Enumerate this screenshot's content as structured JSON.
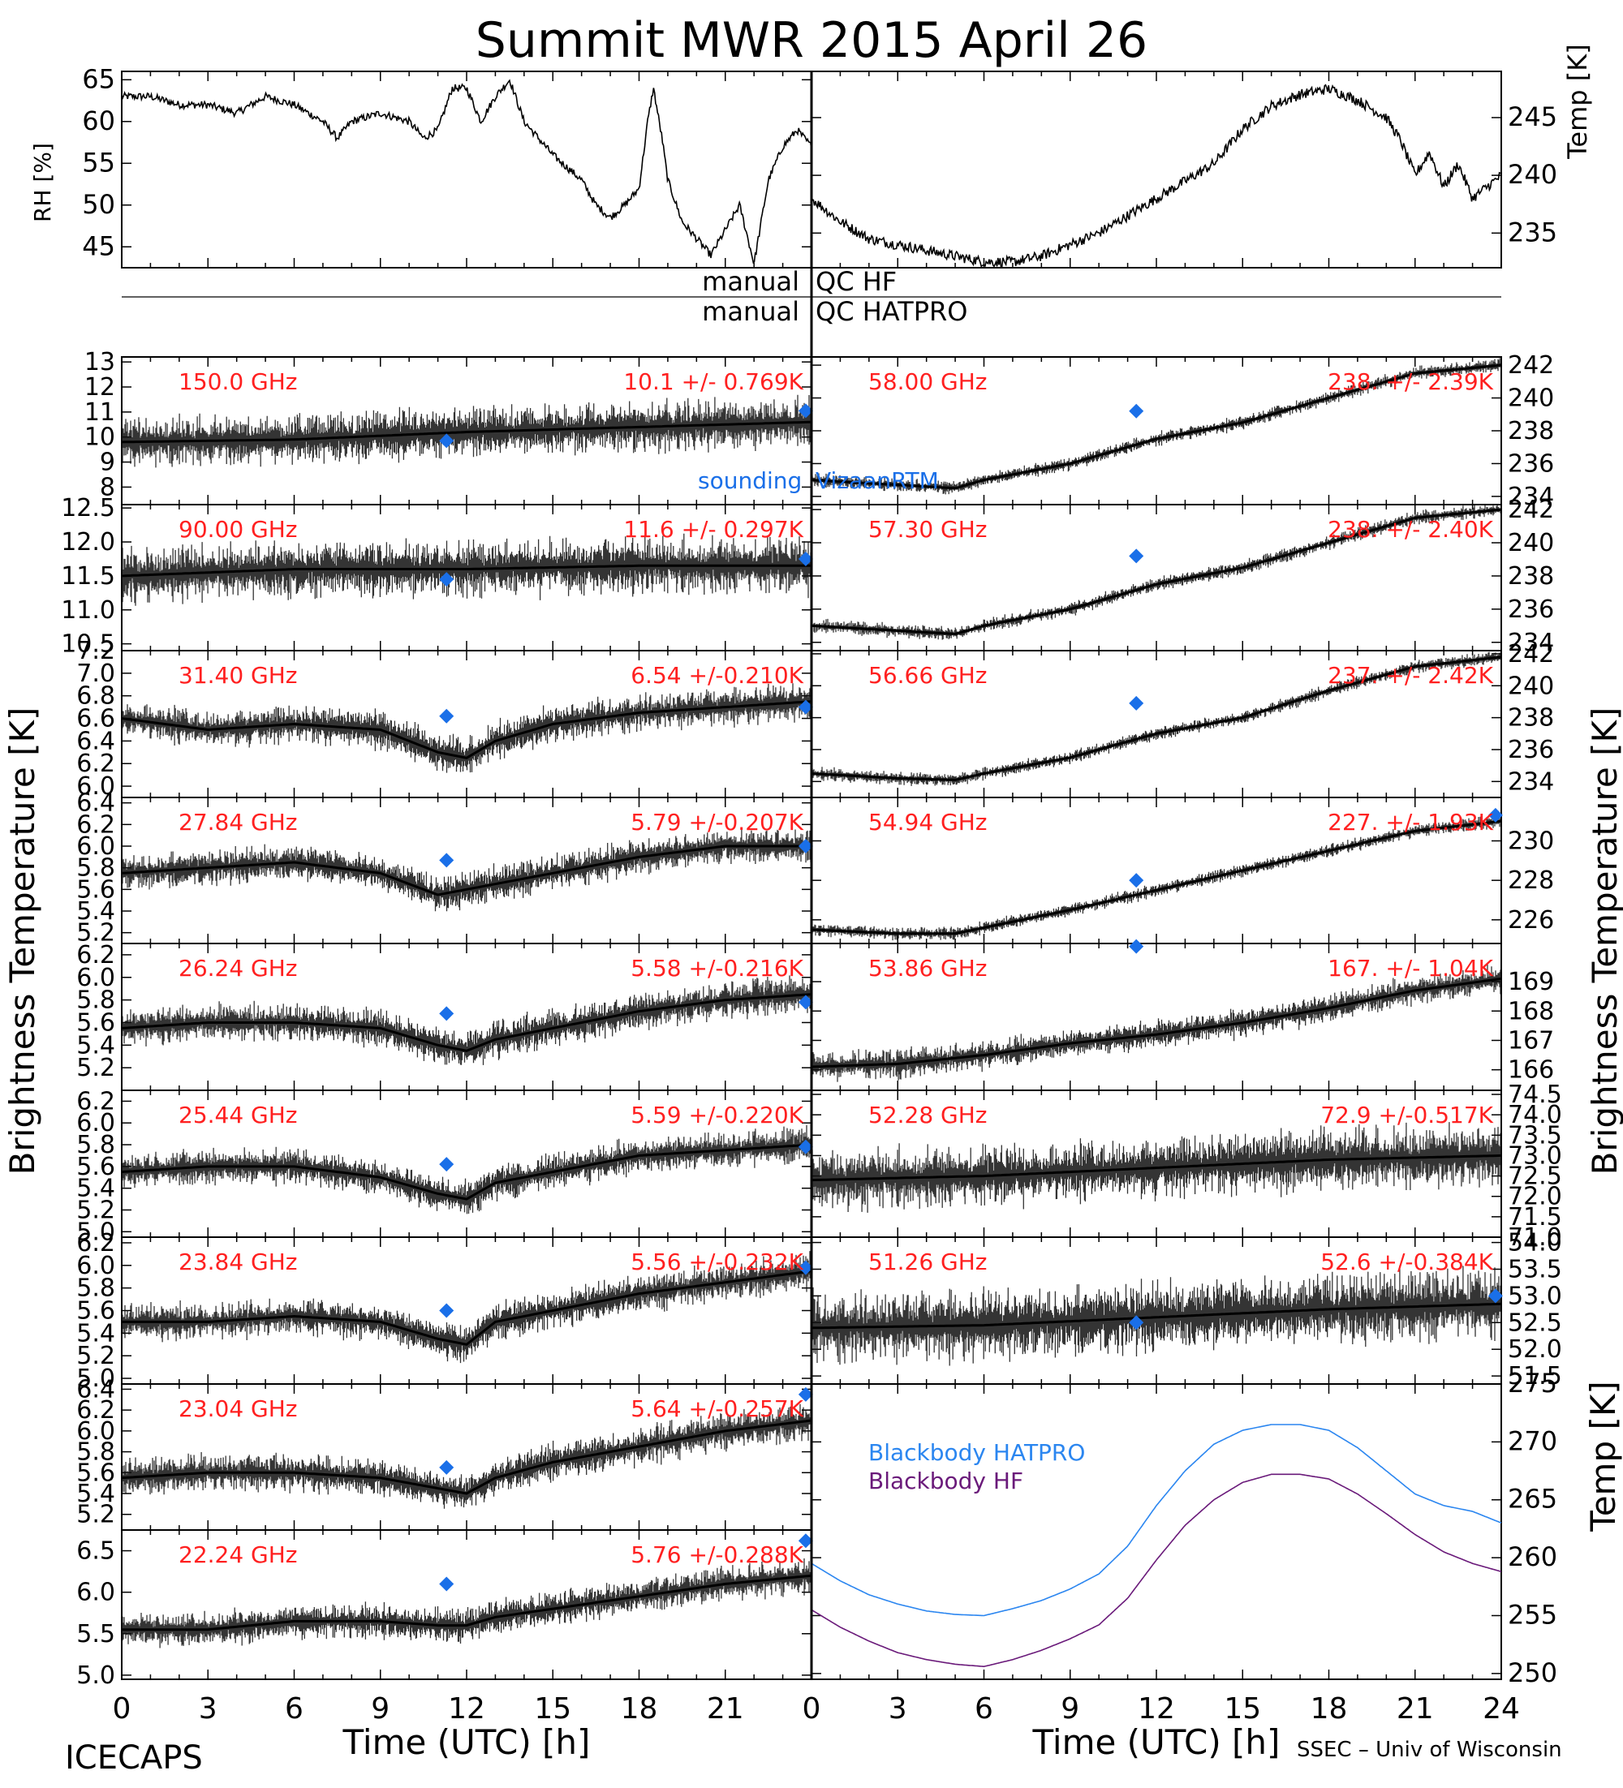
{
  "title": "Summit MWR 2015 April 26",
  "footer": {
    "left": "ICECAPS",
    "right": "SSEC – Univ of Wisconsin"
  },
  "colors": {
    "text": "#000000",
    "stats": "#ff2020",
    "marker": "#1a6fe8",
    "hatpro": "#2b86f0",
    "hf": "#6a1a7a"
  },
  "labels": {
    "rh_axis": "RH [%]",
    "temp_axis": "Temp [K]",
    "tb_axis": "Brightness Temperature [K]",
    "bb_axis": "Temp [K]",
    "qc_hf_left": "manual",
    "qc_hf_right": "QC HF",
    "qc_hat_left": "manual",
    "qc_hat_right": "QC HATPRO",
    "xlabel": "Time (UTC) [h]",
    "sounding": "sounding",
    "sounding_tail": "VizaanRTM",
    "bb_hatpro": "Blackbody HATPRO",
    "bb_hf": "Blackbody HF"
  },
  "chart_data": [
    {
      "id": "rh",
      "type": "line",
      "ylabel": "RH [%]",
      "ylim": [
        42.5,
        66
      ],
      "yticks": [
        45,
        50,
        55,
        60,
        65
      ],
      "xlim": [
        0,
        24
      ],
      "x": [
        0,
        1,
        2,
        3,
        4,
        5,
        6,
        7,
        7.5,
        8,
        9,
        10,
        10.5,
        11,
        11.5,
        12,
        12.5,
        13,
        13.5,
        14,
        15,
        16,
        16.5,
        17,
        17.5,
        18,
        18.3,
        18.5,
        18.8,
        19,
        19.5,
        20,
        20.5,
        21,
        21.5,
        22,
        22.5,
        23,
        23.5,
        24
      ],
      "y": [
        63,
        63,
        62,
        62,
        61,
        63,
        62,
        60,
        58,
        60,
        61,
        60,
        58,
        59,
        64,
        64,
        60,
        63,
        65,
        60,
        56,
        53,
        50,
        48.5,
        50,
        52,
        60,
        64,
        58,
        53,
        48,
        46,
        44,
        47,
        50,
        43,
        53,
        57,
        59,
        57
      ]
    },
    {
      "id": "temp",
      "type": "line",
      "ylabel": "Temp [K]",
      "ylim": [
        232,
        249
      ],
      "yticks": [
        235,
        240,
        245
      ],
      "xlim": [
        0,
        24
      ],
      "x": [
        0,
        1,
        2,
        3,
        4,
        5,
        6,
        7,
        8,
        9,
        10,
        11,
        12,
        13,
        14,
        15,
        16,
        17,
        18,
        19,
        20,
        20.5,
        21,
        21.5,
        22,
        22.5,
        23,
        23.5,
        24
      ],
      "y": [
        238,
        236,
        234.5,
        234,
        233.5,
        233,
        232.5,
        232.5,
        233,
        234,
        235,
        236.5,
        238,
        239.5,
        241,
        244,
        246,
        247,
        247.5,
        246.5,
        245,
        243,
        240,
        242,
        239,
        241,
        238,
        239,
        240
      ]
    },
    {
      "id": "tb150",
      "type": "scatter",
      "label": "150.0 GHz",
      "stats": "10.1 +/- 0.769K",
      "ylim": [
        7.3,
        13.2
      ],
      "yticks": [
        8,
        9,
        10,
        11,
        12,
        13
      ],
      "yticklabels": [
        "8",
        "9",
        "10",
        "11",
        "12",
        "13"
      ],
      "xlim": [
        0,
        24
      ],
      "trend_x": [
        0,
        6,
        12,
        18,
        24
      ],
      "trend_y": [
        9.8,
        9.9,
        10.2,
        10.4,
        10.6
      ],
      "noise": 1.2,
      "sounding": [
        [
          11.3,
          9.85
        ],
        [
          23.8,
          11.05
        ]
      ]
    },
    {
      "id": "tb90",
      "type": "scatter",
      "label": "90.00 GHz",
      "stats": "11.6 +/- 0.297K",
      "ylim": [
        10.4,
        12.55
      ],
      "yticks": [
        10.5,
        11.0,
        11.5,
        12.0,
        12.5
      ],
      "yticklabels": [
        "10.5",
        "11.0",
        "11.5",
        "12.0",
        "12.5"
      ],
      "xlim": [
        0,
        24
      ],
      "trend_x": [
        0,
        6,
        12,
        18,
        24
      ],
      "trend_y": [
        11.5,
        11.6,
        11.6,
        11.65,
        11.65
      ],
      "noise": 0.5,
      "sounding": [
        [
          11.3,
          11.45
        ],
        [
          23.8,
          11.75
        ]
      ]
    },
    {
      "id": "tb3140",
      "type": "scatter",
      "label": "31.40 GHz",
      "stats": "6.54 +/-0.210K",
      "ylim": [
        5.9,
        7.2
      ],
      "yticks": [
        6.0,
        6.2,
        6.4,
        6.6,
        6.8,
        7.0,
        7.2
      ],
      "yticklabels": [
        "6.0",
        "6.2",
        "6.4",
        "6.6",
        "6.8",
        "7.0",
        "7.2"
      ],
      "xlim": [
        0,
        24
      ],
      "trend_x": [
        0,
        3,
        6,
        9,
        11,
        12,
        13,
        15,
        18,
        21,
        24
      ],
      "trend_y": [
        6.6,
        6.5,
        6.55,
        6.5,
        6.3,
        6.25,
        6.4,
        6.55,
        6.65,
        6.7,
        6.75
      ],
      "noise": 0.2,
      "sounding": [
        [
          11.3,
          6.62
        ],
        [
          23.8,
          6.7
        ]
      ]
    },
    {
      "id": "tb2784",
      "type": "scatter",
      "label": "27.84 GHz",
      "stats": "5.79 +/-0.207K",
      "ylim": [
        5.1,
        6.45
      ],
      "yticks": [
        5.2,
        5.4,
        5.6,
        5.8,
        6.0,
        6.2,
        6.4
      ],
      "yticklabels": [
        "5.2",
        "5.4",
        "5.6",
        "5.8",
        "6.0",
        "6.2",
        "6.4"
      ],
      "xlim": [
        0,
        24
      ],
      "trend_x": [
        0,
        3,
        6,
        9,
        11,
        12,
        13,
        15,
        18,
        21,
        24
      ],
      "trend_y": [
        5.75,
        5.8,
        5.85,
        5.75,
        5.55,
        5.6,
        5.65,
        5.75,
        5.9,
        6.0,
        6.0
      ],
      "noise": 0.2,
      "sounding": [
        [
          11.3,
          5.87
        ],
        [
          23.8,
          6.0
        ]
      ]
    },
    {
      "id": "tb2624",
      "type": "scatter",
      "label": "26.24 GHz",
      "stats": "5.58 +/-0.216K",
      "ylim": [
        5.0,
        6.3
      ],
      "yticks": [
        5.2,
        5.4,
        5.6,
        5.8,
        6.0,
        6.2
      ],
      "yticklabels": [
        "5.2",
        "5.4",
        "5.6",
        "5.8",
        "6.0",
        "6.2"
      ],
      "xlim": [
        0,
        24
      ],
      "trend_x": [
        0,
        3,
        6,
        9,
        11,
        12,
        13,
        15,
        18,
        21,
        24
      ],
      "trend_y": [
        5.55,
        5.6,
        5.6,
        5.55,
        5.4,
        5.35,
        5.45,
        5.55,
        5.7,
        5.8,
        5.85
      ],
      "noise": 0.2,
      "sounding": [
        [
          11.3,
          5.68
        ],
        [
          23.8,
          5.78
        ]
      ]
    },
    {
      "id": "tb2544",
      "type": "scatter",
      "label": "25.44 GHz",
      "stats": "5.59 +/-0.220K",
      "ylim": [
        4.95,
        6.3
      ],
      "yticks": [
        5.0,
        5.2,
        5.4,
        5.6,
        5.8,
        6.0,
        6.2
      ],
      "yticklabels": [
        "5.0",
        "5.2",
        "5.4",
        "5.6",
        "5.8",
        "6.0",
        "6.2"
      ],
      "xlim": [
        0,
        24
      ],
      "trend_x": [
        0,
        3,
        6,
        9,
        11,
        12,
        13,
        15,
        18,
        21,
        24
      ],
      "trend_y": [
        5.55,
        5.6,
        5.6,
        5.5,
        5.35,
        5.3,
        5.45,
        5.55,
        5.7,
        5.75,
        5.8
      ],
      "noise": 0.2,
      "sounding": [
        [
          11.3,
          5.62
        ],
        [
          23.8,
          5.78
        ]
      ]
    },
    {
      "id": "tb2384",
      "type": "scatter",
      "label": "23.84 GHz",
      "stats": "5.56 +/-0.232K",
      "ylim": [
        4.95,
        6.25
      ],
      "yticks": [
        5.0,
        5.2,
        5.4,
        5.6,
        5.8,
        6.0,
        6.2
      ],
      "yticklabels": [
        "5.0",
        "5.2",
        "5.4",
        "5.6",
        "5.8",
        "6.0",
        "6.2"
      ],
      "xlim": [
        0,
        24
      ],
      "trend_x": [
        0,
        3,
        6,
        9,
        11,
        12,
        13,
        15,
        18,
        21,
        24
      ],
      "trend_y": [
        5.5,
        5.5,
        5.55,
        5.5,
        5.35,
        5.3,
        5.5,
        5.6,
        5.75,
        5.85,
        5.95
      ],
      "noise": 0.2,
      "sounding": [
        [
          11.3,
          5.6
        ],
        [
          23.8,
          5.98
        ]
      ]
    },
    {
      "id": "tb2304",
      "type": "scatter",
      "label": "23.04 GHz",
      "stats": "5.64 +/-0.257K",
      "ylim": [
        5.05,
        6.45
      ],
      "yticks": [
        5.2,
        5.4,
        5.6,
        5.8,
        6.0,
        6.2,
        6.4
      ],
      "yticklabels": [
        "5.2",
        "5.4",
        "5.6",
        "5.8",
        "6.0",
        "6.2",
        "6.4"
      ],
      "xlim": [
        0,
        24
      ],
      "trend_x": [
        0,
        3,
        6,
        9,
        11,
        12,
        13,
        15,
        18,
        21,
        24
      ],
      "trend_y": [
        5.55,
        5.6,
        5.6,
        5.55,
        5.45,
        5.4,
        5.55,
        5.7,
        5.85,
        6.0,
        6.1
      ],
      "noise": 0.22,
      "sounding": [
        [
          11.3,
          5.65
        ],
        [
          23.8,
          6.35
        ]
      ]
    },
    {
      "id": "tb2224",
      "type": "scatter",
      "label": "22.24 GHz",
      "stats": "5.76 +/-0.288K",
      "ylim": [
        4.95,
        6.75
      ],
      "yticks": [
        5.0,
        5.5,
        6.0,
        6.5
      ],
      "yticklabels": [
        "5.0",
        "5.5",
        "6.0",
        "6.5"
      ],
      "xlim": [
        0,
        24
      ],
      "trend_x": [
        0,
        3,
        6,
        9,
        11,
        12,
        13,
        15,
        18,
        21,
        24
      ],
      "trend_y": [
        5.55,
        5.55,
        5.65,
        5.65,
        5.6,
        5.6,
        5.7,
        5.8,
        5.95,
        6.1,
        6.2
      ],
      "noise": 0.25,
      "sounding": [
        [
          11.3,
          6.1
        ],
        [
          23.8,
          6.62
        ]
      ]
    },
    {
      "id": "tb5800",
      "type": "scatter",
      "label": "58.00 GHz",
      "stats": "238. +/- 2.39K",
      "ylim": [
        233.5,
        242.5
      ],
      "yticks": [
        234,
        236,
        238,
        240,
        242
      ],
      "yticklabels": [
        "234",
        "236",
        "238",
        "240",
        "242"
      ],
      "xlim": [
        0,
        24
      ],
      "trend_x": [
        0,
        3,
        5,
        6,
        9,
        12,
        15,
        18,
        21,
        24
      ],
      "trend_y": [
        235,
        234.7,
        234.5,
        235,
        236,
        237.5,
        238.5,
        240,
        241.5,
        242
      ],
      "noise": 0.5,
      "sounding": [
        [
          11.3,
          239.2
        ]
      ]
    },
    {
      "id": "tb5730",
      "type": "scatter",
      "label": "57.30 GHz",
      "stats": "238. +/- 2.40K",
      "ylim": [
        233.5,
        242.3
      ],
      "yticks": [
        234,
        236,
        238,
        240,
        242
      ],
      "yticklabels": [
        "234",
        "236",
        "238",
        "240",
        "242"
      ],
      "xlim": [
        0,
        24
      ],
      "trend_x": [
        0,
        3,
        5,
        6,
        9,
        12,
        15,
        18,
        21,
        24
      ],
      "trend_y": [
        235,
        234.7,
        234.5,
        235,
        236,
        237.5,
        238.5,
        240,
        241.5,
        242
      ],
      "noise": 0.5,
      "sounding": [
        [
          11.3,
          239.2
        ]
      ]
    },
    {
      "id": "tb5666",
      "type": "scatter",
      "label": "56.66 GHz",
      "stats": "237. +/- 2.42K",
      "ylim": [
        233,
        242.2
      ],
      "yticks": [
        234,
        236,
        238,
        240,
        242
      ],
      "yticklabels": [
        "234",
        "236",
        "238",
        "240",
        "242"
      ],
      "xlim": [
        0,
        24
      ],
      "trend_x": [
        0,
        3,
        5,
        6,
        9,
        12,
        15,
        18,
        21,
        24
      ],
      "trend_y": [
        234.5,
        234.2,
        234.1,
        234.5,
        235.5,
        237,
        238,
        239.7,
        241.2,
        241.8
      ],
      "noise": 0.5,
      "sounding": [
        [
          11.3,
          238.9
        ]
      ]
    },
    {
      "id": "tb5494",
      "type": "scatter",
      "label": "54.94 GHz",
      "stats": "227. +/- 1.93K",
      "ylim": [
        224.8,
        232.2
      ],
      "yticks": [
        226,
        228,
        230
      ],
      "yticklabels": [
        "226",
        "228",
        "230"
      ],
      "xlim": [
        0,
        24
      ],
      "trend_x": [
        0,
        3,
        5,
        6,
        9,
        12,
        15,
        18,
        21,
        24
      ],
      "trend_y": [
        225.5,
        225.3,
        225.3,
        225.6,
        226.5,
        227.5,
        228.5,
        229.5,
        230.5,
        231
      ],
      "noise": 0.4,
      "sounding": [
        [
          11.3,
          228
        ],
        [
          23.8,
          231.3
        ]
      ]
    },
    {
      "id": "tb5386",
      "type": "scatter",
      "label": "53.86 GHz",
      "stats": "167. +/- 1.04K",
      "ylim": [
        165.3,
        170.3
      ],
      "yticks": [
        166,
        167,
        168,
        169
      ],
      "yticklabels": [
        "166",
        "167",
        "168",
        "169"
      ],
      "xlim": [
        0,
        24
      ],
      "trend_x": [
        0,
        3,
        6,
        9,
        12,
        15,
        18,
        21,
        24
      ],
      "trend_y": [
        166.1,
        166.2,
        166.5,
        166.9,
        167.2,
        167.6,
        168.1,
        168.7,
        169.1
      ],
      "noise": 0.6,
      "sounding": [
        [
          11.3,
          170.2
        ]
      ]
    },
    {
      "id": "tb5228",
      "type": "scatter",
      "label": "52.28 GHz",
      "stats": "72.9 +/-0.517K",
      "ylim": [
        71,
        74.6
      ],
      "yticks": [
        71.0,
        71.5,
        72.0,
        72.5,
        73.0,
        73.5,
        74.0,
        74.5
      ],
      "yticklabels": [
        "71.0",
        "71.5",
        "72.0",
        "72.5",
        "73.0",
        "73.5",
        "74.0",
        "74.5"
      ],
      "xlim": [
        0,
        24
      ],
      "trend_x": [
        0,
        6,
        12,
        18,
        24
      ],
      "trend_y": [
        72.4,
        72.5,
        72.7,
        72.9,
        73.0
      ],
      "noise": 0.9,
      "sounding": []
    },
    {
      "id": "tb5126",
      "type": "scatter",
      "label": "51.26 GHz",
      "stats": "52.6 +/-0.384K",
      "ylim": [
        51.35,
        54.1
      ],
      "yticks": [
        51.5,
        52.0,
        52.5,
        53.0,
        53.5,
        54.0
      ],
      "yticklabels": [
        "51.5",
        "52.0",
        "52.5",
        "53.0",
        "53.5",
        "54.0"
      ],
      "xlim": [
        0,
        24
      ],
      "trend_x": [
        0,
        6,
        12,
        18,
        24
      ],
      "trend_y": [
        52.4,
        52.45,
        52.6,
        52.75,
        52.85
      ],
      "noise": 0.8,
      "sounding": [
        [
          11.3,
          52.5
        ],
        [
          23.8,
          53.0
        ]
      ]
    },
    {
      "id": "blackbody",
      "type": "line",
      "ylabel": "Temp [K]",
      "ylim": [
        249.5,
        275
      ],
      "yticks": [
        250,
        255,
        260,
        265,
        270,
        275
      ],
      "xlim": [
        0,
        24
      ],
      "series": [
        {
          "name": "Blackbody HATPRO",
          "x": [
            0,
            1,
            2,
            3,
            4,
            5,
            6,
            7,
            8,
            9,
            10,
            11,
            12,
            13,
            14,
            15,
            16,
            17,
            18,
            19,
            20,
            21,
            22,
            23,
            24
          ],
          "y": [
            259.5,
            258,
            256.8,
            256,
            255.4,
            255.1,
            255,
            255.6,
            256.3,
            257.3,
            258.6,
            261,
            264.5,
            267.5,
            269.8,
            271,
            271.5,
            271.5,
            271,
            269.5,
            267.5,
            265.5,
            264.5,
            264,
            263
          ]
        },
        {
          "name": "Blackbody HF",
          "x": [
            0,
            1,
            2,
            3,
            4,
            5,
            6,
            7,
            8,
            9,
            10,
            11,
            12,
            13,
            14,
            15,
            16,
            17,
            18,
            19,
            20,
            21,
            22,
            23,
            24
          ],
          "y": [
            255.5,
            254,
            252.8,
            251.8,
            251.2,
            250.8,
            250.6,
            251.2,
            252,
            253,
            254.2,
            256.5,
            259.8,
            262.8,
            265,
            266.5,
            267.2,
            267.2,
            266.8,
            265.5,
            263.8,
            262,
            260.5,
            259.5,
            258.8
          ]
        }
      ]
    }
  ],
  "xticks": [
    "0",
    "3",
    "6",
    "9",
    "12",
    "15",
    "18",
    "21",
    "24"
  ]
}
